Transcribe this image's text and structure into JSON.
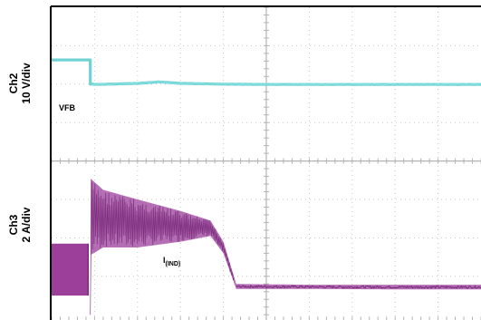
{
  "chart_data": {
    "type": "line",
    "title": "",
    "xlabel": "",
    "ylabel_ch2": "10 V/div",
    "ylabel_ch2_channel": "Ch2",
    "ylabel_ch3": "2 A/div",
    "ylabel_ch3_channel": "Ch3",
    "x_divisions": 10,
    "y_divisions": 8,
    "grid": true,
    "annotations": {
      "vfb": "VFB",
      "iind_main": "I",
      "iind_sub": "(IND)"
    },
    "colors": {
      "ch2": "#6fd3d3",
      "ch3": "#9b3f9b",
      "ch3_dark": "#7a2a7a",
      "grid": "#c8c8c8",
      "frame": "#000000"
    },
    "series": [
      {
        "name": "VFB",
        "channel": "Ch2",
        "unit_per_div": "10 V/div",
        "points_div": [
          [
            0.0,
            6.63
          ],
          [
            0.9,
            6.63
          ],
          [
            0.9,
            6.0
          ],
          [
            0.95,
            6.0
          ],
          [
            1.0,
            5.99
          ],
          [
            2.0,
            6.02
          ],
          [
            2.5,
            6.06
          ],
          [
            3.0,
            6.02
          ],
          [
            4.0,
            6.0
          ],
          [
            5.0,
            5.99
          ],
          [
            6.0,
            5.99
          ],
          [
            7.0,
            5.99
          ],
          [
            8.0,
            5.99
          ],
          [
            9.0,
            5.99
          ],
          [
            10.0,
            5.99
          ]
        ]
      },
      {
        "name": "I(IND)",
        "channel": "Ch3",
        "unit_per_div": "2 A/div",
        "envelope_div": [
          {
            "x": 0.0,
            "low": 0.5,
            "high": 1.85
          },
          {
            "x": 0.85,
            "low": 0.5,
            "high": 1.85
          },
          {
            "x": 0.85,
            "low": 0.0,
            "high": 0.0
          },
          {
            "x": 0.9,
            "low": 0.0,
            "high": 0.0
          },
          {
            "x": 0.9,
            "low": 1.55,
            "high": 3.55
          },
          {
            "x": 1.2,
            "low": 1.75,
            "high": 3.25
          },
          {
            "x": 2.0,
            "low": 1.75,
            "high": 3.0
          },
          {
            "x": 3.0,
            "low": 1.9,
            "high": 2.7
          },
          {
            "x": 3.7,
            "low": 2.05,
            "high": 2.45
          },
          {
            "x": 4.0,
            "low": 1.6,
            "high": 1.9
          },
          {
            "x": 4.3,
            "low": 0.67,
            "high": 0.8
          },
          {
            "x": 6.0,
            "low": 0.67,
            "high": 0.78
          },
          {
            "x": 8.0,
            "low": 0.66,
            "high": 0.78
          },
          {
            "x": 10.0,
            "low": 0.66,
            "high": 0.78
          }
        ]
      }
    ]
  }
}
